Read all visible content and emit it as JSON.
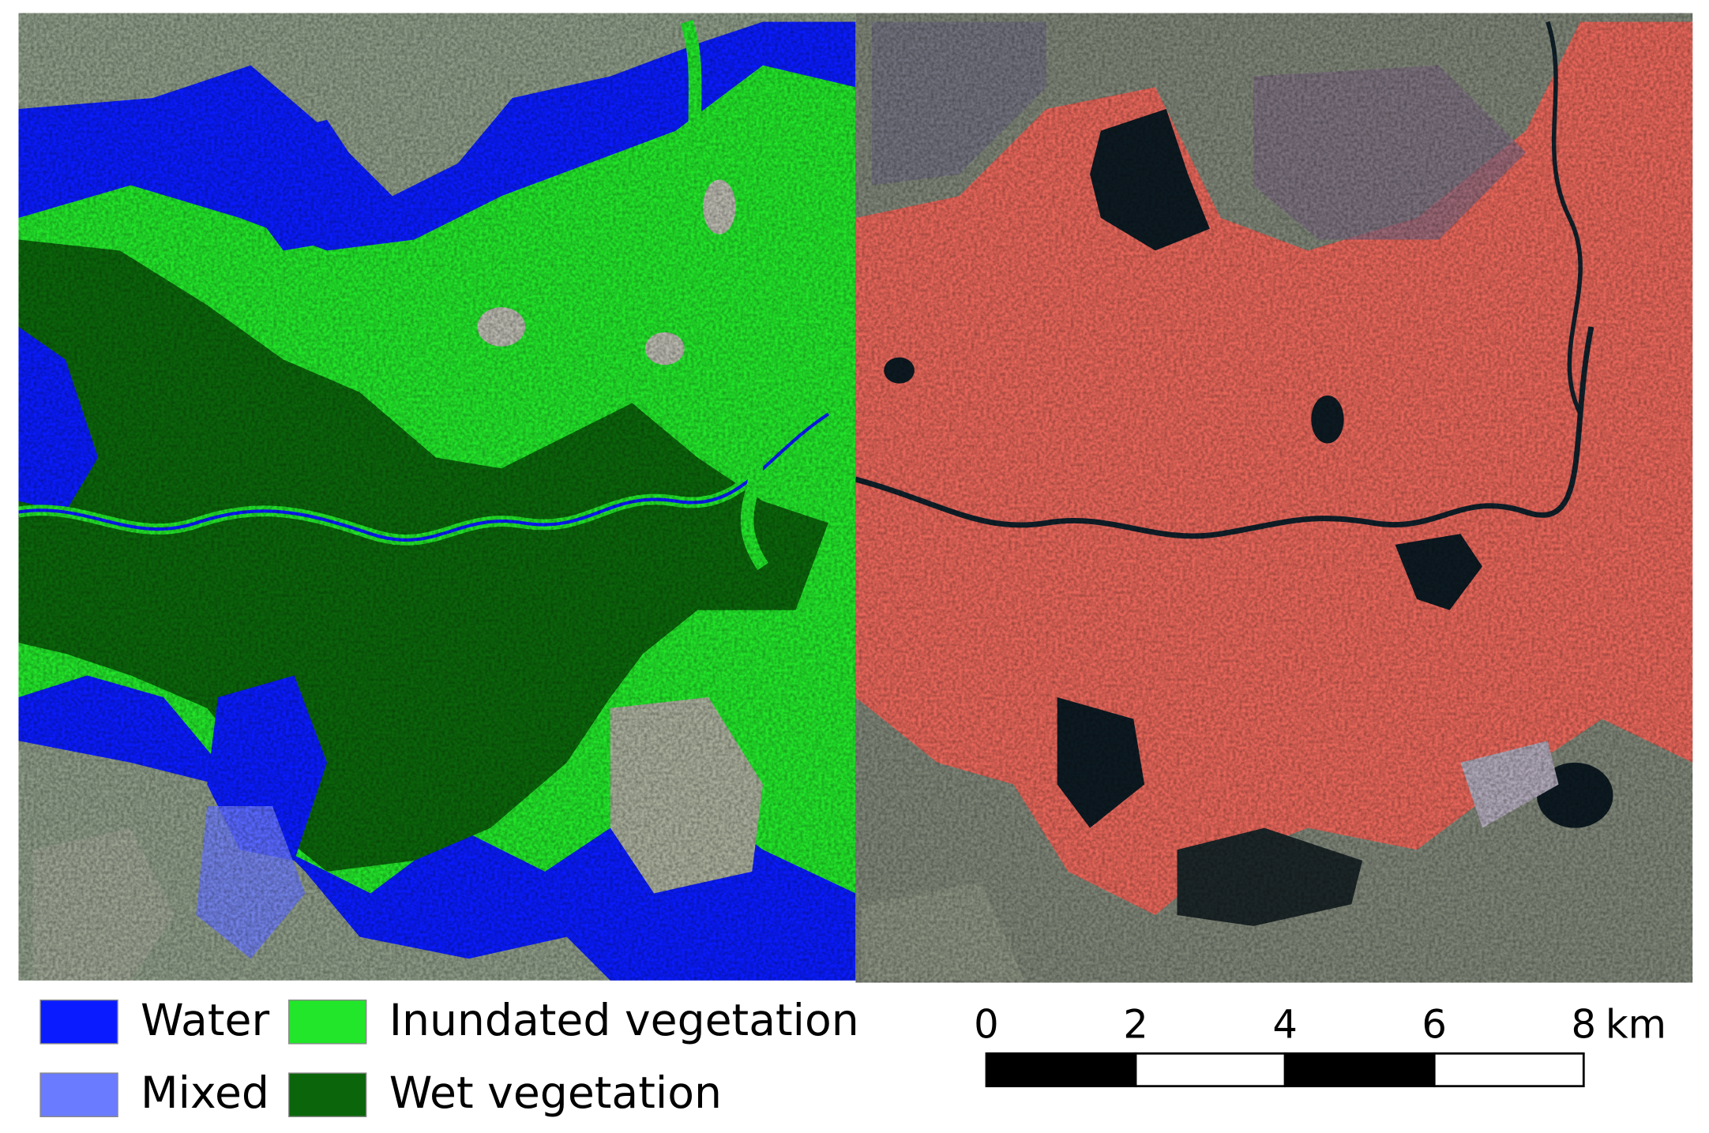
{
  "legend": {
    "items": [
      {
        "label": "Water",
        "color": "#0a1cff"
      },
      {
        "label": "Inundated vegetation",
        "color": "#22e62a"
      },
      {
        "label": "Mixed",
        "color": "#6b7bff"
      },
      {
        "label": "Wet vegetation",
        "color": "#0b660b"
      }
    ]
  },
  "scale_bar": {
    "ticks": [
      0,
      2,
      4,
      6,
      8
    ],
    "unit": "km"
  }
}
